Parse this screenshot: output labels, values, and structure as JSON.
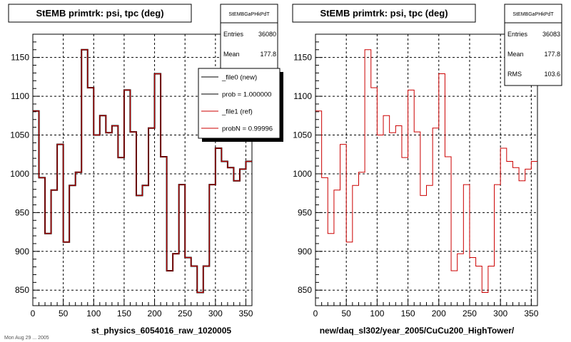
{
  "chart_data": [
    {
      "type": "histogram",
      "title": "StEMB primtrk: psi, tpc (deg)",
      "xlabel": "st_physics_6054016_raw_1020005",
      "xlim": [
        0,
        360
      ],
      "ylim": [
        830,
        1180
      ],
      "xticks": [
        0,
        50,
        100,
        150,
        200,
        250,
        300,
        350
      ],
      "yticks": [
        850,
        900,
        950,
        1000,
        1050,
        1100,
        1150
      ],
      "grid": true,
      "bin_width": 10,
      "x": [
        5,
        15,
        25,
        35,
        45,
        55,
        65,
        75,
        85,
        95,
        105,
        115,
        125,
        135,
        145,
        155,
        165,
        175,
        185,
        195,
        205,
        215,
        225,
        235,
        245,
        255,
        265,
        275,
        285,
        295,
        305,
        315,
        325,
        335,
        345,
        355
      ],
      "series": [
        {
          "name": "_file0 (new)",
          "color": "#000000",
          "values": [
            1081,
            995,
            923,
            979,
            1038,
            912,
            985,
            1002,
            1160,
            1111,
            1050,
            1075,
            1053,
            1062,
            1021,
            1108,
            1054,
            972,
            985,
            1059,
            1129,
            1022,
            875,
            897,
            986,
            892,
            881,
            847,
            881,
            986,
            1033,
            1016,
            1008,
            991,
            1006,
            1016
          ]
        },
        {
          "name": "_file1 (ref)",
          "color": "#cc0000",
          "values": [
            1081,
            995,
            923,
            979,
            1038,
            912,
            985,
            1002,
            1160,
            1111,
            1050,
            1075,
            1053,
            1062,
            1021,
            1108,
            1054,
            972,
            985,
            1059,
            1129,
            1022,
            875,
            897,
            986,
            892,
            881,
            847,
            881,
            986,
            1033,
            1016,
            1008,
            991,
            1006,
            1016
          ]
        }
      ],
      "stats": {
        "header": "StEMBGaPHkPdT",
        "entries_label": "Entries",
        "entries": "36080",
        "mean_label": "Mean",
        "mean": "177.8"
      },
      "legend": {
        "placement": "top-right",
        "entries": [
          {
            "label": "_file0 (new)",
            "color": "#000000"
          },
          {
            "label": "prob = 1.000000",
            "color": "#000000"
          },
          {
            "label": "_file1 (ref)",
            "color": "#cc0000"
          },
          {
            "label": "probN = 0.99996",
            "color": "#cc0000"
          }
        ]
      }
    },
    {
      "type": "histogram",
      "title": "StEMB primtrk: psi, tpc (deg)",
      "xlabel": "new/daq_sl302/year_2005/CuCu200_HighTower/",
      "xlim": [
        0,
        360
      ],
      "ylim": [
        830,
        1180
      ],
      "xticks": [
        0,
        50,
        100,
        150,
        200,
        250,
        300,
        350
      ],
      "yticks": [
        850,
        900,
        950,
        1000,
        1050,
        1100,
        1150
      ],
      "grid": true,
      "bin_width": 10,
      "x": [
        5,
        15,
        25,
        35,
        45,
        55,
        65,
        75,
        85,
        95,
        105,
        115,
        125,
        135,
        145,
        155,
        165,
        175,
        185,
        195,
        205,
        215,
        225,
        235,
        245,
        255,
        265,
        275,
        285,
        295,
        305,
        315,
        325,
        335,
        345,
        355
      ],
      "series": [
        {
          "color": "#cc0000",
          "values": [
            1081,
            995,
            923,
            979,
            1038,
            912,
            985,
            1002,
            1160,
            1111,
            1050,
            1075,
            1053,
            1062,
            1021,
            1108,
            1054,
            972,
            985,
            1059,
            1129,
            1022,
            875,
            897,
            986,
            892,
            881,
            847,
            881,
            986,
            1033,
            1016,
            1008,
            991,
            1006,
            1016
          ]
        }
      ],
      "stats": {
        "header": "StEMBGaPHkPdT",
        "entries_label": "Entries",
        "entries": "36083",
        "mean_label": "Mean",
        "mean": "177.8",
        "rms_label": "RMS",
        "rms": "103.6"
      }
    }
  ],
  "footer": "Mon Aug 29 ... 2005"
}
